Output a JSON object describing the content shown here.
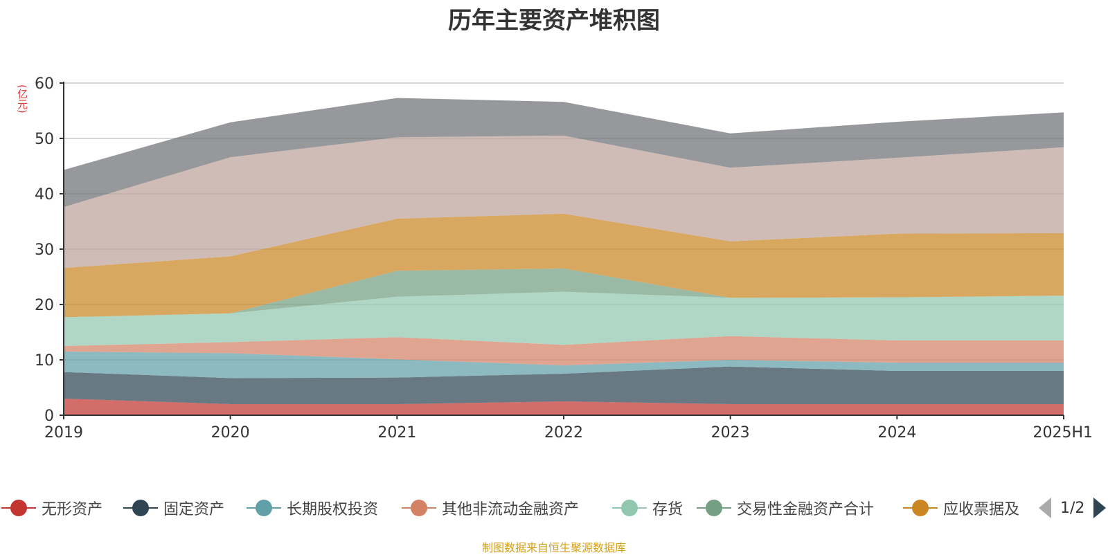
{
  "title": "历年主要资产堆积图",
  "unit": "(亿元)",
  "source": "制图数据来自恒生聚源数据库",
  "legend_pager": "1/2",
  "chart_data": {
    "type": "area",
    "stacked": true,
    "categories": [
      "2019",
      "2020",
      "2021",
      "2022",
      "2023",
      "2024",
      "2025H1"
    ],
    "ylim": [
      0,
      60
    ],
    "yticks": [
      0,
      10,
      20,
      30,
      40,
      50,
      60
    ],
    "grid": true,
    "legend_position": "bottom",
    "series": [
      {
        "name": "无形资产",
        "color": "#c23531",
        "values": [
          3.0,
          2.0,
          2.0,
          2.5,
          2.0,
          2.0,
          2.0
        ],
        "legend": true
      },
      {
        "name": "固定资产",
        "color": "#2f4554",
        "values": [
          4.8,
          4.7,
          4.8,
          5.0,
          6.8,
          6.0,
          6.0
        ],
        "legend": true
      },
      {
        "name": "长期股权投资",
        "color": "#61a0a8",
        "values": [
          3.7,
          4.5,
          3.3,
          1.5,
          1.2,
          1.5,
          1.5
        ],
        "legend": true
      },
      {
        "name": "其他非流动金融资产",
        "color": "#d48265",
        "values": [
          1.0,
          2.0,
          4.0,
          3.7,
          4.3,
          4.0,
          4.0
        ],
        "legend": true
      },
      {
        "name": "存货",
        "color": "#91c7ae",
        "values": [
          5.2,
          5.2,
          7.3,
          9.6,
          6.9,
          7.8,
          8.1
        ],
        "legend": true
      },
      {
        "name": "交易性金融资产合计",
        "color": "#749f83",
        "values": [
          0.0,
          0.0,
          4.7,
          4.2,
          0.0,
          0.0,
          0.0
        ],
        "legend": true
      },
      {
        "name": "应收票据及",
        "color": "#ca8622",
        "values": [
          8.9,
          10.3,
          9.4,
          9.9,
          10.2,
          11.5,
          11.3
        ],
        "legend": true
      },
      {
        "name": "",
        "color": "#bda29a",
        "values": [
          11.0,
          17.9,
          14.7,
          14.1,
          13.3,
          13.7,
          15.5
        ],
        "legend": false
      },
      {
        "name": "",
        "color": "#6e7074",
        "values": [
          6.7,
          6.3,
          7.1,
          6.1,
          6.2,
          6.5,
          6.3
        ],
        "legend": false
      }
    ]
  }
}
